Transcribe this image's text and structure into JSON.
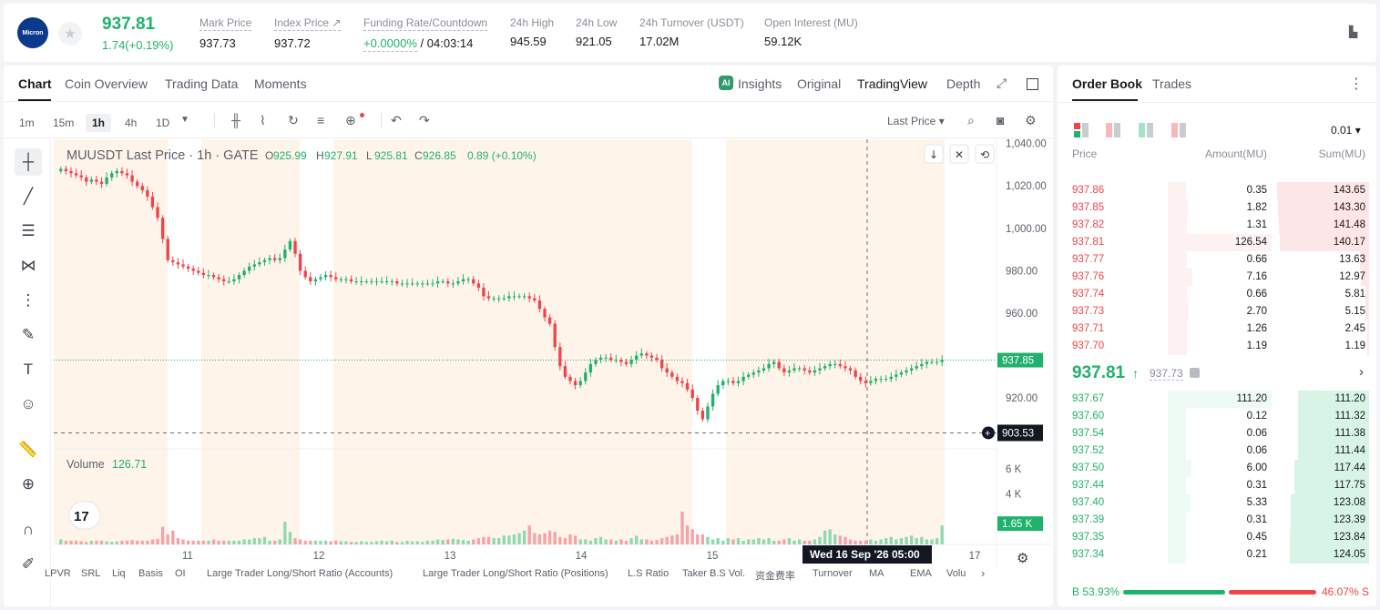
{
  "header": {
    "logo_text": "Micron",
    "last_price": "937.81",
    "change": "1.74(+0.19%)",
    "stats": [
      {
        "label": "Mark Price",
        "value": "937.73"
      },
      {
        "label": "Index Price ↗",
        "value": "937.72"
      },
      {
        "label": "Funding Rate/Countdown",
        "value": "+0.0000%",
        "value2": " / 04:03:14"
      },
      {
        "label": "24h High",
        "value": "945.59"
      },
      {
        "label": "24h Low",
        "value": "921.05"
      },
      {
        "label": "24h Turnover (USDT)",
        "value": "17.02M"
      },
      {
        "label": "Open Interest (MU)",
        "value": "59.12K"
      }
    ]
  },
  "chart_tabs": [
    "Chart",
    "Coin Overview",
    "Trading Data",
    "Moments"
  ],
  "view_tabs": [
    "Insights",
    "Original",
    "TradingView",
    "Depth"
  ],
  "intervals": [
    "1m",
    "15m",
    "1h",
    "4h",
    "1D"
  ],
  "price_type": "Last Price ▾",
  "legend": {
    "symbol": "MUUSDT Last Price · 1h · GATE",
    "o": "925.99",
    "h": "927.91",
    "l": "925.81",
    "c": "926.85",
    "chg": "0.89 (+0.10%)",
    "volume_label": "Volume",
    "volume_value": "126.71"
  },
  "chart_data": {
    "type": "candlestick",
    "y_ticks": [
      "1,040.00",
      "1,020.00",
      "1,000.00",
      "980.00",
      "960.00",
      "920.00"
    ],
    "ylim": [
      896,
      1042
    ],
    "x_ticks": [
      "11",
      "12",
      "13",
      "14",
      "15",
      "17"
    ],
    "last_price_tag": "937.85",
    "crosshair_price": "903.53",
    "crosshair_time": "Wed 16 Sep '26   05:00",
    "volume_ticks": [
      "6 K",
      "4 K"
    ],
    "volume_tag": "1.65 K",
    "volume_ylim": [
      0,
      7000
    ],
    "close_series": [
      1028,
      1027,
      1026,
      1025,
      1024,
      1022,
      1023,
      1022,
      1021,
      1024,
      1026,
      1027,
      1026,
      1025,
      1022,
      1020,
      1018,
      1015,
      1010,
      1005,
      995,
      985,
      984,
      983,
      982,
      981,
      980,
      979,
      978,
      978,
      977,
      976,
      975,
      975,
      976,
      978,
      980,
      982,
      983,
      984,
      985,
      986,
      985,
      986,
      990,
      994,
      988,
      980,
      977,
      975,
      976,
      977,
      978,
      977,
      976,
      976,
      976,
      975,
      975,
      975,
      975,
      975,
      975,
      975,
      975,
      975,
      974,
      974,
      974,
      974,
      974,
      974,
      974,
      974,
      975,
      975,
      974,
      974,
      975,
      976,
      976,
      974,
      972,
      968,
      967,
      967,
      967,
      967,
      968,
      968,
      968,
      968,
      967,
      966,
      962,
      958,
      955,
      944,
      935,
      930,
      928,
      926,
      928,
      932,
      936,
      938,
      939,
      939,
      938,
      938,
      937,
      936,
      938,
      940,
      941,
      940,
      939,
      938,
      934,
      932,
      930,
      928,
      927,
      924,
      920,
      914,
      910,
      916,
      922,
      926,
      928,
      928,
      927,
      928,
      930,
      931,
      932,
      933,
      934,
      936,
      937,
      934,
      932,
      933,
      934,
      934,
      933,
      932,
      933,
      934,
      935,
      936,
      936,
      935,
      934,
      933,
      930,
      928,
      927,
      928,
      929,
      929,
      929,
      930,
      931,
      932,
      933,
      934,
      935,
      936,
      937,
      937,
      937,
      938
    ],
    "volume_series": [
      400,
      300,
      300,
      300,
      250,
      200,
      300,
      300,
      300,
      250,
      200,
      250,
      300,
      300,
      350,
      300,
      300,
      300,
      400,
      450,
      1400,
      800,
      1100,
      500,
      400,
      300,
      300,
      300,
      300,
      300,
      400,
      300,
      300,
      300,
      300,
      300,
      400,
      400,
      500,
      500,
      600,
      300,
      300,
      400,
      1800,
      1000,
      500,
      400,
      300,
      300,
      300,
      300,
      300,
      250,
      300,
      250,
      250,
      200,
      200,
      250,
      200,
      200,
      250,
      300,
      250,
      300,
      200,
      200,
      300,
      250,
      250,
      200,
      300,
      300,
      400,
      350,
      400,
      450,
      400,
      350,
      300,
      400,
      500,
      600,
      600,
      500,
      500,
      700,
      700,
      800,
      900,
      1100,
      1500,
      900,
      800,
      900,
      1100,
      1000,
      600,
      500,
      800,
      700,
      400,
      400,
      300,
      500,
      600,
      400,
      400,
      300,
      400,
      300,
      500,
      700,
      400,
      400,
      300,
      350,
      500,
      600,
      700,
      800,
      2600,
      1500,
      1200,
      800,
      800,
      600,
      400,
      500,
      300,
      500,
      400,
      500,
      300,
      400,
      400,
      500,
      400,
      500,
      300,
      300,
      400,
      500,
      300,
      400,
      300,
      300,
      400,
      600,
      1100,
      1200,
      800,
      700,
      600,
      400,
      300,
      300,
      300,
      400,
      300,
      400,
      500,
      600,
      400,
      500,
      600,
      700,
      500,
      600,
      400,
      400,
      500,
      1500
    ]
  },
  "bottom_items": [
    "LPVR",
    "SRL",
    "Liq",
    "Basis",
    "OI",
    "Large Trader Long/Short Ratio (Accounts)",
    "Large Trader Long/Short Ratio (Positions)",
    "L.S Ratio",
    "Taker B.S Vol.",
    "资金费率",
    "Turnover",
    "MA",
    "EMA",
    "Volu"
  ],
  "order_book": {
    "tabs": [
      "Order Book",
      "Trades"
    ],
    "precision": "0.01 ▾",
    "headers": [
      "Price",
      "Amount(MU)",
      "Sum(MU)"
    ],
    "asks": [
      {
        "price": "937.86",
        "amount": "0.35",
        "sum": "143.65"
      },
      {
        "price": "937.85",
        "amount": "1.82",
        "sum": "143.30"
      },
      {
        "price": "937.82",
        "amount": "1.31",
        "sum": "141.48"
      },
      {
        "price": "937.81",
        "amount": "126.54",
        "sum": "140.17"
      },
      {
        "price": "937.77",
        "amount": "0.66",
        "sum": "13.63"
      },
      {
        "price": "937.76",
        "amount": "7.16",
        "sum": "12.97"
      },
      {
        "price": "937.74",
        "amount": "0.66",
        "sum": "5.81"
      },
      {
        "price": "937.73",
        "amount": "2.70",
        "sum": "5.15"
      },
      {
        "price": "937.71",
        "amount": "1.26",
        "sum": "2.45"
      },
      {
        "price": "937.70",
        "amount": "1.19",
        "sum": "1.19"
      }
    ],
    "mid_price": "937.81",
    "mid_mark": "937.73",
    "bids": [
      {
        "price": "937.67",
        "amount": "111.20",
        "sum": "111.20"
      },
      {
        "price": "937.60",
        "amount": "0.12",
        "sum": "111.32"
      },
      {
        "price": "937.54",
        "amount": "0.06",
        "sum": "111.38"
      },
      {
        "price": "937.52",
        "amount": "0.06",
        "sum": "111.44"
      },
      {
        "price": "937.50",
        "amount": "6.00",
        "sum": "117.44"
      },
      {
        "price": "937.44",
        "amount": "0.31",
        "sum": "117.75"
      },
      {
        "price": "937.40",
        "amount": "5.33",
        "sum": "123.08"
      },
      {
        "price": "937.39",
        "amount": "0.31",
        "sum": "123.39"
      },
      {
        "price": "937.35",
        "amount": "0.45",
        "sum": "123.84"
      },
      {
        "price": "937.34",
        "amount": "0.21",
        "sum": "124.05"
      }
    ],
    "buy_ratio": "B 53.93%",
    "sell_ratio": "46.07% S",
    "buy_pct": 53.93
  },
  "colors": {
    "up": "#20b26c",
    "down": "#ef454a",
    "session_shade": "#fff4ea"
  }
}
